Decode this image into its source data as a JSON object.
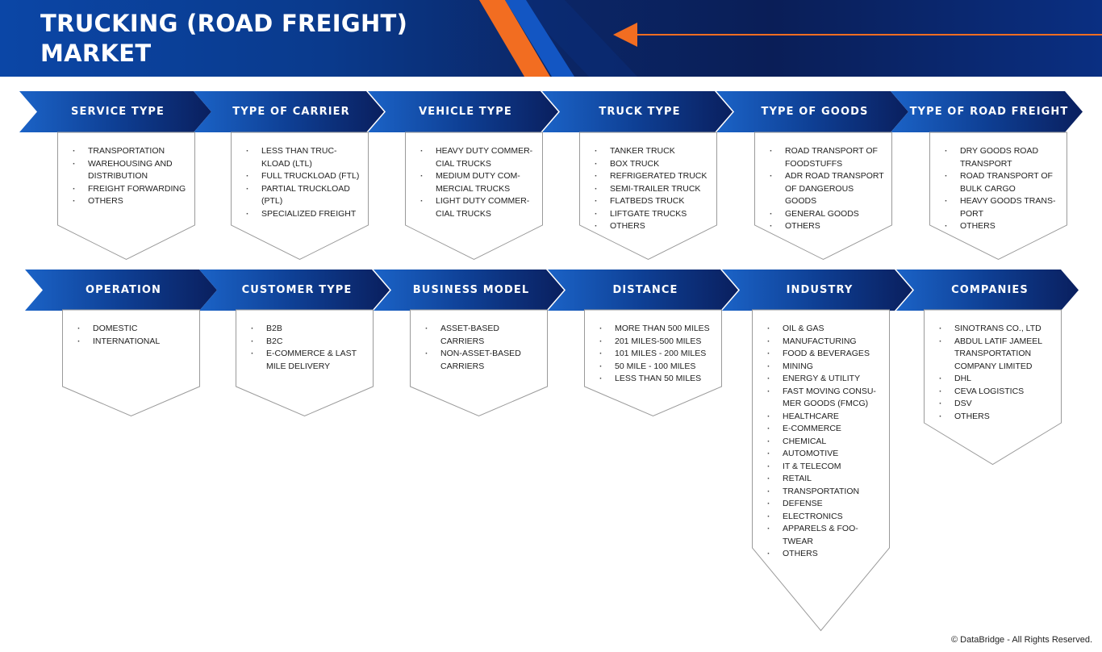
{
  "title_line1": "TRUCKING (ROAD FREIGHT)",
  "title_line2": "MARKET",
  "colors": {
    "navy": "#0a1e57",
    "blue": "#1b63c7",
    "orange": "#f26d21"
  },
  "row1": [
    {
      "title": "SERVICE TYPE",
      "items": [
        "TRANSPORTATION",
        "WAREHOUSING AND DISTRIBUTION",
        "FREIGHT FORWARDING",
        "OTHERS"
      ]
    },
    {
      "title": "TYPE OF CARRIER",
      "items": [
        "LESS THAN TRUC-KLOAD (LTL)",
        "FULL TRUCKLOAD (FTL)",
        "PARTIAL TRUCKLOAD (PTL)",
        "SPECIALIZED FREIGHT"
      ]
    },
    {
      "title": "VEHICLE TYPE",
      "items": [
        "HEAVY DUTY COMMER-CIAL TRUCKS",
        "MEDIUM DUTY COM-MERCIAL TRUCKS",
        "LIGHT DUTY COMMER-CIAL TRUCKS"
      ]
    },
    {
      "title": "TRUCK TYPE",
      "items": [
        "TANKER TRUCK",
        "BOX TRUCK",
        "REFRIGERATED TRUCK",
        "SEMI-TRAILER TRUCK",
        "FLATBEDS TRUCK",
        "LIFTGATE TRUCKS",
        "OTHERS"
      ]
    },
    {
      "title": "TYPE OF GOODS",
      "items": [
        "ROAD TRANSPORT OF FOODSTUFFS",
        "ADR ROAD TRANSPORT OF DANGEROUS GOODS",
        "GENERAL GOODS",
        "OTHERS"
      ]
    },
    {
      "title": "TYPE OF ROAD FREIGHT",
      "items": [
        "DRY GOODS ROAD TRANSPORT",
        "ROAD TRANSPORT OF BULK CARGO",
        "HEAVY GOODS TRANS-PORT",
        "OTHERS"
      ]
    }
  ],
  "row2": [
    {
      "title": "OPERATION",
      "items": [
        "DOMESTIC",
        "INTERNATIONAL"
      ]
    },
    {
      "title": "CUSTOMER TYPE",
      "items": [
        "B2B",
        "B2C",
        "E-COMMERCE & LAST MILE DELIVERY"
      ]
    },
    {
      "title": "BUSINESS MODEL",
      "items": [
        "ASSET-BASED CARRIERS",
        "NON-ASSET-BASED CARRIERS"
      ]
    },
    {
      "title": "DISTANCE",
      "items": [
        "MORE THAN 500 MILES",
        "201 MILES-500 MILES",
        "101 MILES - 200 MILES",
        "50 MILE - 100 MILES",
        "LESS THAN 50 MILES"
      ]
    },
    {
      "title": "INDUSTRY",
      "items": [
        "OIL & GAS",
        "MANUFACTURING",
        "FOOD & BEVERAGES",
        "MINING",
        "ENERGY & UTILITY",
        "FAST MOVING CONSU-MER GOODS (FMCG)",
        "HEALTHCARE",
        "E-COMMERCE",
        "CHEMICAL",
        "AUTOMOTIVE",
        "IT & TELECOM",
        "RETAIL",
        "TRANSPORTATION",
        "DEFENSE",
        "ELECTRONICS",
        "APPARELS & FOO-TWEAR",
        "OTHERS"
      ]
    },
    {
      "title": "COMPANIES",
      "items": [
        "SINOTRANS CO., LTD",
        "ABDUL LATIF JAMEEL TRANSPORTATION COMPANY LIMITED",
        "DHL",
        "CEVA LOGISTICS",
        "DSV",
        "OTHERS"
      ]
    }
  ],
  "copyright": "© DataBridge - All Rights Reserved."
}
